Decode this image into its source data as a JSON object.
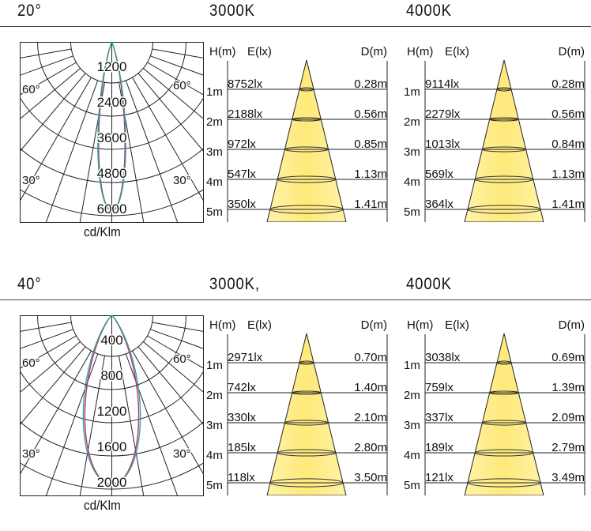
{
  "sections": [
    {
      "beam_angle": "20°",
      "polar": {
        "angle_labels": [
          "60°",
          "60°",
          "30°",
          "30°"
        ],
        "ring_labels": [
          "1200",
          "2400",
          "3600",
          "4800",
          "6000"
        ],
        "unit": "cd/Klm"
      },
      "panels": [
        {
          "cct": "3000K",
          "h_header": "H(m)",
          "e_header": "E(lx)",
          "d_header": "D(m)",
          "rows": [
            {
              "h": "1m",
              "e": "8752lx",
              "d": "0.28m"
            },
            {
              "h": "2m",
              "e": "2188lx",
              "d": "0.56m"
            },
            {
              "h": "3m",
              "e": "972lx",
              "d": "0.85m"
            },
            {
              "h": "4m",
              "e": "547lx",
              "d": "1.13m"
            },
            {
              "h": "5m",
              "e": "350lx",
              "d": "1.41m"
            }
          ]
        },
        {
          "cct": "4000K",
          "h_header": "H(m)",
          "e_header": "E(lx)",
          "d_header": "D(m)",
          "rows": [
            {
              "h": "1m",
              "e": "9114lx",
              "d": "0.28m"
            },
            {
              "h": "2m",
              "e": "2279lx",
              "d": "0.56m"
            },
            {
              "h": "3m",
              "e": "1013lx",
              "d": "0.84m"
            },
            {
              "h": "4m",
              "e": "569lx",
              "d": "1.13m"
            },
            {
              "h": "5m",
              "e": "364lx",
              "d": "1.41m"
            }
          ]
        }
      ]
    },
    {
      "beam_angle": "40°",
      "polar": {
        "angle_labels": [
          "60°",
          "60°",
          "30°",
          "30°"
        ],
        "ring_labels": [
          "400",
          "800",
          "1200",
          "1600",
          "2000"
        ],
        "unit": "cd/Klm"
      },
      "panels": [
        {
          "cct": "3000K,",
          "h_header": "H(m)",
          "e_header": "E(lx)",
          "d_header": "D(m)",
          "rows": [
            {
              "h": "1m",
              "e": "2971lx",
              "d": "0.70m"
            },
            {
              "h": "2m",
              "e": "742lx",
              "d": "1.40m"
            },
            {
              "h": "3m",
              "e": "330lx",
              "d": "2.10m"
            },
            {
              "h": "4m",
              "e": "185lx",
              "d": "2.80m"
            },
            {
              "h": "5m",
              "e": "118lx",
              "d": "3.50m"
            }
          ]
        },
        {
          "cct": "4000K",
          "h_header": "H(m)",
          "e_header": "E(lx)",
          "d_header": "D(m)",
          "rows": [
            {
              "h": "1m",
              "e": "3038lx",
              "d": "0.69m"
            },
            {
              "h": "2m",
              "e": "759lx",
              "d": "1.39m"
            },
            {
              "h": "3m",
              "e": "337lx",
              "d": "2.09m"
            },
            {
              "h": "4m",
              "e": "189lx",
              "d": "2.79m"
            },
            {
              "h": "5m",
              "e": "121lx",
              "d": "3.49m"
            }
          ]
        }
      ]
    }
  ],
  "colors": {
    "cone_fill": "#fff3a8",
    "cone_center": "#ffe97a",
    "curve_a": "#2ba7a0",
    "curve_b": "#c0306a",
    "grid": "#222222"
  }
}
